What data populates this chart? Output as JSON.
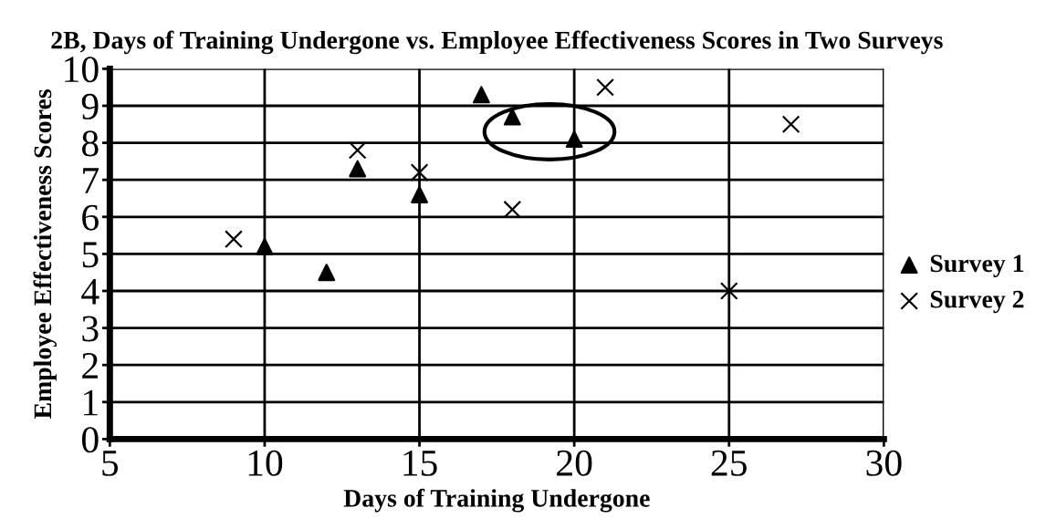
{
  "chart_data": {
    "type": "scatter",
    "title": "2B, Days of Training Undergone vs. Employee Effectiveness Scores in Two Surveys",
    "xlabel": "Days of Training Undergone",
    "ylabel": "Employee Effectiveness Scores",
    "series": [
      {
        "name": "Survey 1",
        "color": "#000000",
        "marker": "triangle",
        "x": [
          10,
          12,
          13,
          15,
          17,
          18,
          20
        ],
        "values": [
          5.2,
          4.5,
          7.3,
          6.6,
          9.3,
          8.7,
          8.1
        ]
      },
      {
        "name": "Survey 2",
        "color": "#000000",
        "marker": "cross",
        "x": [
          9,
          13,
          15,
          18,
          21,
          25,
          27
        ],
        "values": [
          5.4,
          7.8,
          7.2,
          6.2,
          9.5,
          4.0,
          8.5
        ]
      }
    ],
    "xlim": [
      5,
      30
    ],
    "xticks": [
      5,
      10,
      15,
      20,
      25,
      30
    ],
    "ylim": [
      0,
      10
    ],
    "yticks": [
      0,
      1,
      2,
      3,
      4,
      5,
      6,
      7,
      8,
      9,
      10
    ],
    "grid": true,
    "legend": "right"
  }
}
